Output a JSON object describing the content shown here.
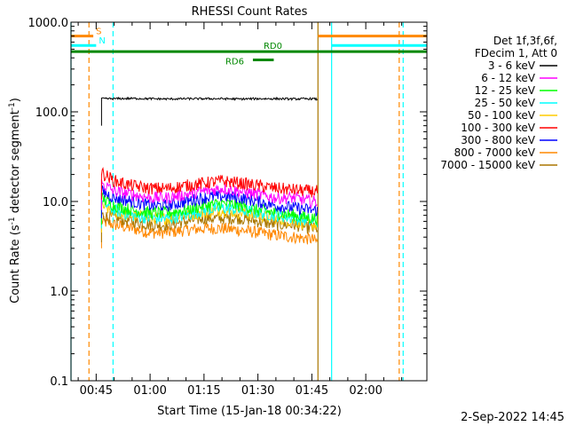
{
  "chart_data": {
    "type": "line",
    "title": "RHESSI Count Rates",
    "xlabel": "Start Time (15-Jan-18 00:34:22)",
    "ylabel_main": "Count Rate (s",
    "ylabel_sup": "-1",
    "ylabel_tail": " detector segment",
    "ylabel_sup2": "-1",
    "ylabel_close": ")",
    "y_scale": "log",
    "ylim": [
      0.1,
      1000
    ],
    "xlim_minutes": [
      38.0,
      137.0
    ],
    "x_ticks": [
      {
        "label": "00:45",
        "minutes": 45
      },
      {
        "label": "01:00",
        "minutes": 60
      },
      {
        "label": "01:15",
        "minutes": 75
      },
      {
        "label": "01:30",
        "minutes": 90
      },
      {
        "label": "01:45",
        "minutes": 105
      },
      {
        "label": "02:00",
        "minutes": 120
      }
    ],
    "y_ticks": [
      {
        "label": "0.1",
        "value": 0.1
      },
      {
        "label": "1.0",
        "value": 1
      },
      {
        "label": "10.0",
        "value": 10
      },
      {
        "label": "100.0",
        "value": 100
      },
      {
        "label": "1000.0",
        "value": 1000
      }
    ],
    "legend_header": [
      "Det 1f,3f,6f,",
      "FDecim 1, Att 0"
    ],
    "legend_position": "right",
    "series": [
      {
        "name": "3 - 6 keV",
        "color": "#000000",
        "x_minutes": [
          46.5,
          50,
          55,
          60,
          65,
          70,
          75,
          80,
          85,
          90,
          95,
          100,
          105,
          106.7
        ],
        "values": [
          140,
          140,
          141,
          140,
          139,
          140,
          140,
          140,
          139,
          140,
          140,
          139,
          140,
          138
        ]
      },
      {
        "name": "6 - 12 keV",
        "color": "#ff00ff",
        "x_minutes": [
          46.5,
          50,
          55,
          60,
          65,
          70,
          75,
          80,
          85,
          90,
          95,
          100,
          105,
          106.7
        ],
        "values": [
          16,
          13,
          12,
          11,
          11,
          12,
          13,
          14,
          13,
          12,
          11,
          11,
          10,
          10
        ]
      },
      {
        "name": "12 - 25 keV",
        "color": "#00ff00",
        "x_minutes": [
          46.5,
          50,
          55,
          60,
          65,
          70,
          75,
          80,
          85,
          90,
          95,
          100,
          105,
          106.7
        ],
        "values": [
          11,
          9,
          8,
          7.5,
          7.5,
          8,
          9,
          9.5,
          9,
          8,
          7.5,
          7,
          6.5,
          6.5
        ]
      },
      {
        "name": "25 - 50 keV",
        "color": "#00ffff",
        "x_minutes": [
          46.5,
          50,
          55,
          60,
          65,
          70,
          75,
          80,
          85,
          90,
          95,
          100,
          105,
          106.7
        ],
        "values": [
          10,
          8,
          7,
          6.5,
          6.5,
          7,
          8,
          8.5,
          8,
          7.5,
          7,
          6.5,
          6,
          6
        ]
      },
      {
        "name": "50 - 100 keV",
        "color": "#ffcc00",
        "x_minutes": [
          46.5,
          50,
          55,
          60,
          65,
          70,
          75,
          80,
          85,
          90,
          95,
          100,
          105,
          106.7
        ],
        "values": [
          9,
          7.5,
          7,
          6.5,
          6.5,
          7,
          7.5,
          8,
          7.5,
          7,
          6.5,
          6,
          5.5,
          5.5
        ]
      },
      {
        "name": "100 - 300 keV",
        "color": "#ff0000",
        "x_minutes": [
          46.5,
          50,
          55,
          60,
          65,
          70,
          75,
          80,
          85,
          90,
          95,
          100,
          105,
          106.7
        ],
        "values": [
          21,
          17,
          15,
          14,
          14,
          15,
          16,
          17,
          16,
          15,
          14,
          13.5,
          13,
          13
        ]
      },
      {
        "name": "300 - 800 keV",
        "color": "#0000ff",
        "x_minutes": [
          46.5,
          50,
          55,
          60,
          65,
          70,
          75,
          80,
          85,
          90,
          95,
          100,
          105,
          106.7
        ],
        "values": [
          13,
          11,
          10,
          9,
          9,
          10,
          11,
          11.5,
          11,
          10,
          9,
          8.5,
          8,
          8
        ]
      },
      {
        "name": "800 - 7000 keV",
        "color": "#ff8800",
        "x_minutes": [
          46.5,
          50,
          55,
          60,
          65,
          70,
          75,
          80,
          85,
          90,
          95,
          100,
          105,
          106.7
        ],
        "values": [
          6,
          5.5,
          5,
          4.5,
          4.5,
          4.8,
          5,
          5,
          4.8,
          4.5,
          4.2,
          4,
          3.8,
          3.5
        ]
      },
      {
        "name": "7000 - 15000 keV",
        "color": "#aa7700",
        "x_minutes": [
          46.5,
          50,
          55,
          60,
          65,
          70,
          75,
          80,
          85,
          90,
          95,
          100,
          105,
          106.7
        ],
        "values": [
          7,
          6.5,
          6,
          5.5,
          5.5,
          6,
          6.5,
          6.5,
          6.5,
          6,
          5.5,
          5.5,
          5,
          5
        ]
      }
    ],
    "flag_bars": [
      {
        "label": "S",
        "color": "#ff8800",
        "y_value": 700,
        "segments": [
          [
            38.0,
            44.2
          ],
          [
            106.7,
            137.0
          ]
        ]
      },
      {
        "label": "N",
        "color": "#00ffff",
        "y_value": 550,
        "segments": [
          [
            38.0,
            45.0
          ],
          [
            110.5,
            137.0
          ]
        ]
      },
      {
        "label": "RD0",
        "color": "#008800",
        "y_value": 470,
        "segments": [
          [
            38.0,
            137.0
          ]
        ]
      },
      {
        "label": "RD6",
        "color": "#008800",
        "y_value": 380,
        "segments": [
          [
            88.6,
            94.4
          ]
        ]
      }
    ],
    "vertical_markers": [
      {
        "color": "#ff8800",
        "style": "dashed",
        "minutes": 43.0
      },
      {
        "color": "#00ffff",
        "style": "dashed",
        "minutes": 49.7
      },
      {
        "color": "#00ffff",
        "style": "solid",
        "minutes": 38.0
      },
      {
        "color": "#aa7700",
        "style": "solid",
        "minutes": 106.7
      },
      {
        "color": "#00ffff",
        "style": "solid",
        "minutes": 110.5
      },
      {
        "color": "#ff8800",
        "style": "dashed",
        "minutes": 129.3
      },
      {
        "color": "#00ffff",
        "style": "dashed",
        "minutes": 130.4
      }
    ],
    "footer_date": "2-Sep-2022 14:45"
  }
}
